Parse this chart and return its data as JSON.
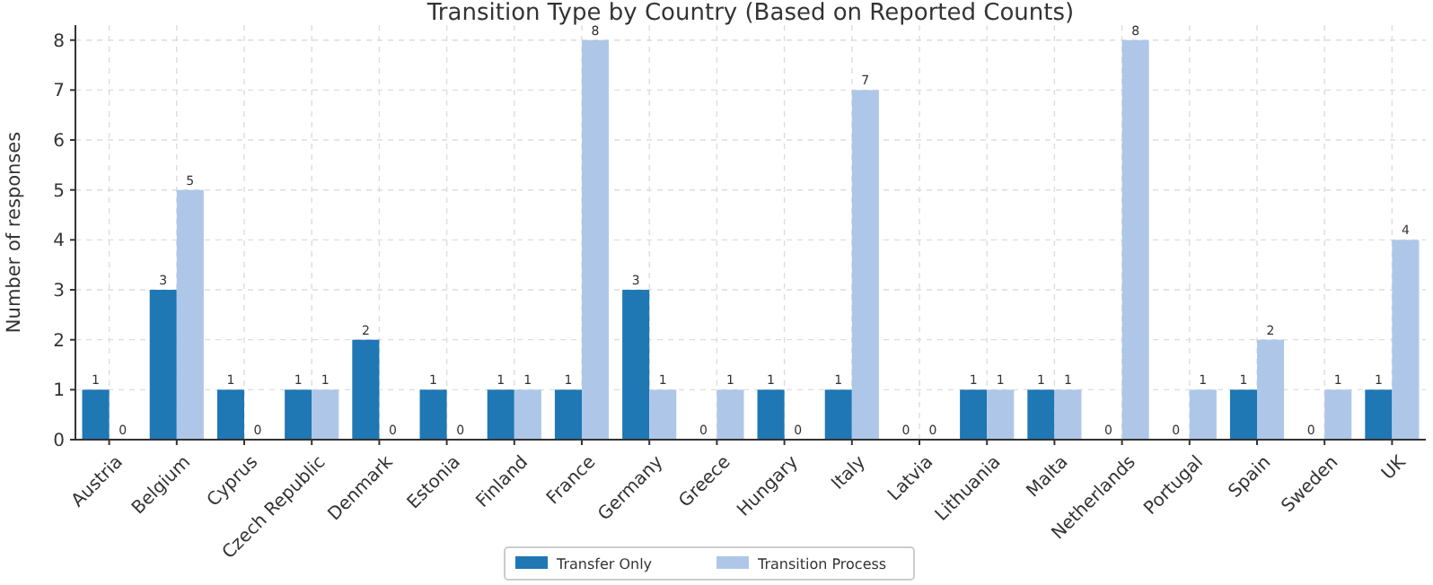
{
  "chart_data": {
    "type": "bar",
    "title": "Transition Type by Country (Based on Reported Counts)",
    "ylabel": "Number of responses",
    "categories": [
      "Austria",
      "Belgium",
      "Cyprus",
      "Czech Republic",
      "Denmark",
      "Estonia",
      "Finland",
      "France",
      "Germany",
      "Greece",
      "Hungary",
      "Italy",
      "Latvia",
      "Lithuania",
      "Malta",
      "Netherlands",
      "Portugal",
      "Spain",
      "Sweden",
      "UK"
    ],
    "series": [
      {
        "name": "Transfer Only",
        "color": "#1f77b4",
        "values": [
          1,
          3,
          1,
          1,
          2,
          1,
          1,
          1,
          3,
          0,
          1,
          1,
          0,
          1,
          1,
          0,
          0,
          1,
          0,
          1
        ]
      },
      {
        "name": "Transition Process",
        "color": "#aec7e8",
        "values": [
          0,
          5,
          0,
          1,
          0,
          0,
          1,
          8,
          1,
          1,
          0,
          7,
          0,
          1,
          1,
          8,
          1,
          2,
          1,
          4
        ]
      }
    ],
    "ylim": [
      0,
      8.3
    ],
    "yticks": [
      0,
      1,
      2,
      3,
      4,
      5,
      6,
      7,
      8
    ],
    "grid": true,
    "legend": "bottom",
    "data_labels": true
  }
}
